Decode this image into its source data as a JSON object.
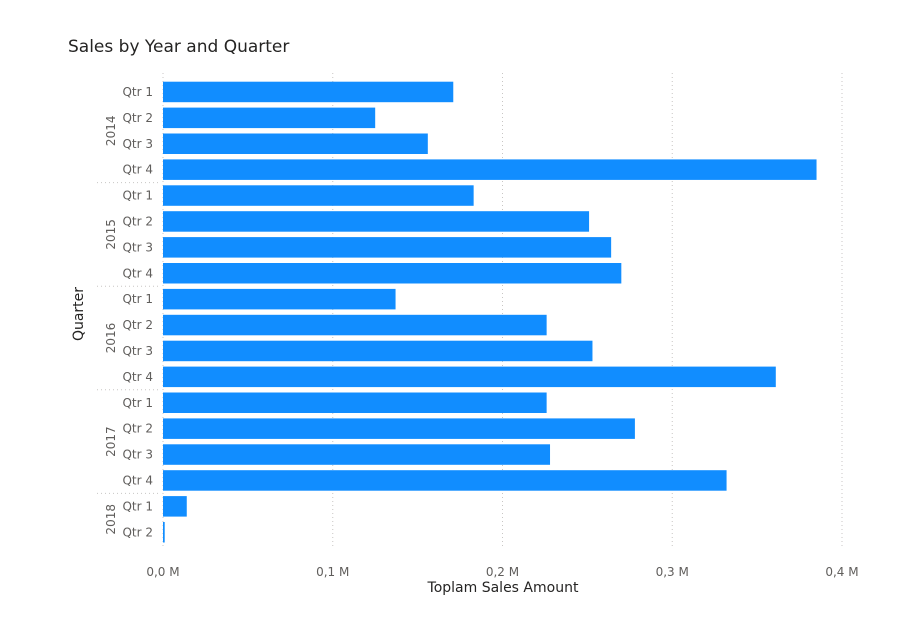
{
  "chart_data": {
    "type": "bar",
    "orientation": "horizontal",
    "title": "Sales by Year and Quarter",
    "xlabel": "Toplam Sales Amount",
    "ylabel": "Quarter",
    "xlim": [
      0,
      0.4
    ],
    "x_unit": "M",
    "x_ticks": [
      "0,0 M",
      "0,1 M",
      "0,2 M",
      "0,3 M",
      "0,4 M"
    ],
    "grid": true,
    "bar_color": "#118DFF",
    "groups": [
      {
        "year": "2014",
        "quarters": [
          "Qtr 1",
          "Qtr 2",
          "Qtr 3",
          "Qtr 4"
        ],
        "values": [
          0.171,
          0.125,
          0.156,
          0.385
        ]
      },
      {
        "year": "2015",
        "quarters": [
          "Qtr 1",
          "Qtr 2",
          "Qtr 3",
          "Qtr 4"
        ],
        "values": [
          0.183,
          0.251,
          0.264,
          0.27
        ]
      },
      {
        "year": "2016",
        "quarters": [
          "Qtr 1",
          "Qtr 2",
          "Qtr 3",
          "Qtr 4"
        ],
        "values": [
          0.137,
          0.226,
          0.253,
          0.361
        ]
      },
      {
        "year": "2017",
        "quarters": [
          "Qtr 1",
          "Qtr 2",
          "Qtr 3",
          "Qtr 4"
        ],
        "values": [
          0.226,
          0.278,
          0.228,
          0.332
        ]
      },
      {
        "year": "2018",
        "quarters": [
          "Qtr 1",
          "Qtr 2"
        ],
        "values": [
          0.014,
          0.001
        ]
      }
    ]
  }
}
